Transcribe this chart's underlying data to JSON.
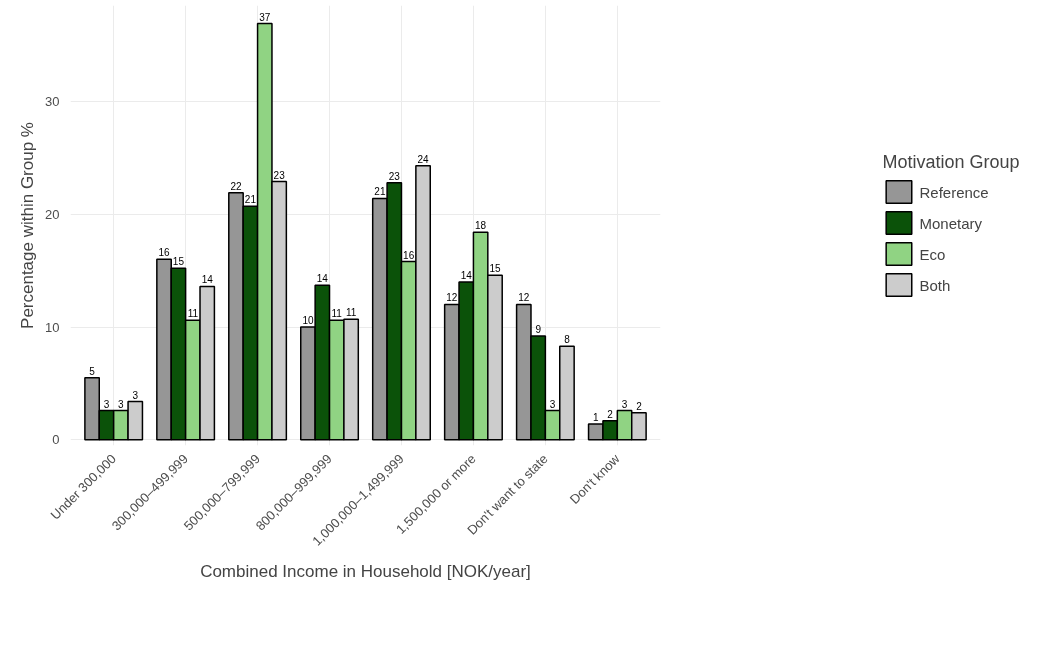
{
  "chart_data": {
    "type": "bar",
    "xlabel": "Combined Income in Household [NOK/year]",
    "ylabel": "Percentage within Group %",
    "legend_title": "Motivation Group",
    "categories": [
      "Under 300,000",
      "300,000–499,999",
      "500,000–799,999",
      "800,000–999,999",
      "1,000,000–1,499,999",
      "1,500,000 or more",
      "Don't want to state",
      "Don't know"
    ],
    "series": [
      {
        "name": "Reference",
        "color": "#969696",
        "values": [
          5.5,
          16.0,
          21.9,
          10.0,
          21.4,
          12.0,
          12.0,
          1.4
        ],
        "value_labels": [
          "5",
          "16",
          "22",
          "10",
          "21",
          "12",
          "12",
          "1"
        ]
      },
      {
        "name": "Monetary",
        "color": "#0b5209",
        "values": [
          2.6,
          15.2,
          20.7,
          13.7,
          22.8,
          14.0,
          9.2,
          1.7
        ],
        "value_labels": [
          "3",
          "15",
          "21",
          "14",
          "23",
          "14",
          "9",
          "2"
        ]
      },
      {
        "name": "Eco",
        "color": "#90d383",
        "values": [
          2.6,
          10.6,
          36.9,
          10.6,
          15.8,
          18.4,
          2.6,
          2.6
        ],
        "value_labels": [
          "3",
          "11",
          "37",
          "11",
          "16",
          "18",
          "3",
          "3"
        ]
      },
      {
        "name": "Both",
        "color": "#cccccc",
        "values": [
          3.4,
          13.6,
          22.9,
          10.7,
          24.3,
          14.6,
          8.3,
          2.4
        ],
        "value_labels": [
          "3",
          "14",
          "23",
          "11",
          "24",
          "15",
          "8",
          "2"
        ]
      }
    ],
    "ylim": [
      -0.5,
      38.5
    ],
    "yticks": [
      0,
      10,
      20,
      30
    ],
    "grid": true,
    "legend": "right"
  }
}
